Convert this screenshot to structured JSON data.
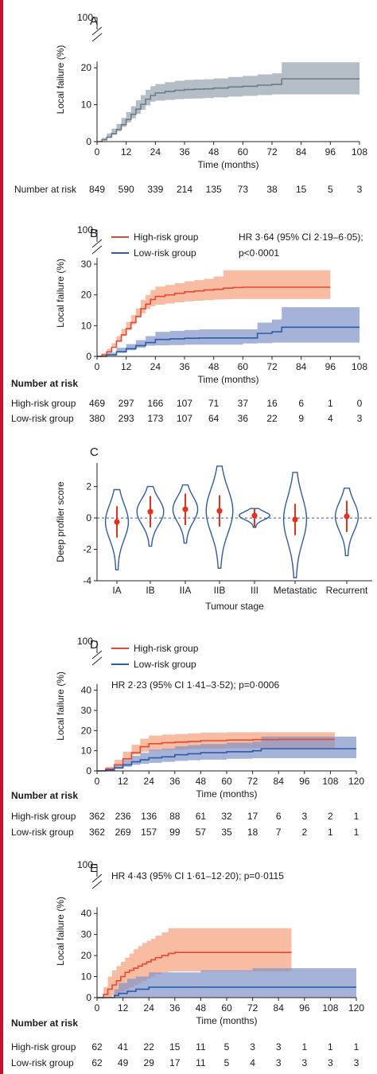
{
  "colors": {
    "gray": "#6e7b85",
    "gray_fill": "#9aa8b3",
    "red": "#e8482c",
    "red_fill": "#f4a07a",
    "blue": "#2f5aa8",
    "blue_fill": "#7f93c8",
    "dot": "#e8301e"
  },
  "chart_data": [
    {
      "panel": "A",
      "type": "line",
      "xlabel": "Time (months)",
      "ylabel": "Local failure (%)",
      "xticks": [
        0,
        12,
        24,
        36,
        48,
        60,
        72,
        84,
        96,
        108
      ],
      "yticks": [
        0,
        10,
        20
      ],
      "y_break_label": "100",
      "xlim": [
        0,
        108
      ],
      "ylim": [
        0,
        25
      ],
      "series": [
        {
          "name": "",
          "color": "gray",
          "x": [
            0,
            2,
            4,
            6,
            8,
            10,
            12,
            14,
            16,
            18,
            20,
            22,
            24,
            28,
            32,
            36,
            40,
            44,
            48,
            54,
            60,
            66,
            72,
            76,
            80,
            90,
            100,
            108
          ],
          "y": [
            0,
            0.5,
            1.2,
            2.2,
            3.3,
            4.6,
            6,
            7.4,
            8.8,
            10.1,
            11.5,
            12.5,
            13.2,
            13.6,
            13.9,
            14.1,
            14.2,
            14.3,
            14.5,
            14.8,
            15,
            15.3,
            15.5,
            17,
            17,
            17,
            17,
            17
          ],
          "lo": [
            0,
            0,
            0.3,
            1,
            1.8,
            2.8,
            4,
            5.2,
            6.3,
            7.5,
            8.6,
            9.8,
            10.8,
            11.1,
            11.3,
            11.5,
            11.6,
            11.7,
            11.8,
            12,
            12.2,
            12.4,
            12.6,
            12.8,
            12.8,
            12.8,
            12.8,
            12.8
          ],
          "hi": [
            0,
            1,
            2.2,
            3.5,
            4.8,
            6.4,
            8,
            9.6,
            11.2,
            12.6,
            14,
            15,
            15.6,
            16.1,
            16.5,
            16.7,
            16.8,
            16.9,
            17.1,
            17.5,
            17.8,
            18.2,
            18.5,
            21.5,
            21.5,
            21.5,
            21.5,
            21.5
          ]
        }
      ],
      "risk_table": {
        "header": "Number at risk",
        "rows": [
          {
            "label": "",
            "values": [
              "849",
              "590",
              "339",
              "214",
              "135",
              "73",
              "38",
              "15",
              "5",
              "3"
            ]
          }
        ]
      }
    },
    {
      "panel": "B",
      "type": "line",
      "xlabel": "Time (months)",
      "ylabel": "Local failure (%)",
      "xticks": [
        0,
        12,
        24,
        36,
        48,
        60,
        72,
        84,
        96,
        108
      ],
      "yticks": [
        0,
        10,
        20,
        30
      ],
      "y_break_label": "100",
      "xlim": [
        0,
        108
      ],
      "ylim": [
        0,
        30
      ],
      "annotation": [
        "HR 3·64 (95% CI 2·19–6·05);",
        "p<0·0001"
      ],
      "series": [
        {
          "name": "High-risk group",
          "color": "red",
          "x": [
            0,
            2,
            4,
            6,
            8,
            10,
            12,
            14,
            16,
            18,
            20,
            22,
            24,
            28,
            32,
            36,
            40,
            44,
            48,
            52,
            56,
            60,
            64,
            70,
            76,
            80,
            90,
            96
          ],
          "y": [
            0,
            0.5,
            1.5,
            3,
            5,
            7,
            9,
            11,
            13,
            15.5,
            17,
            18.5,
            19.5,
            20,
            20.5,
            21,
            21.3,
            21.6,
            21.8,
            22.2,
            22.4,
            22.5,
            22.5,
            22.5,
            22.5,
            22.5,
            22.5,
            22.5
          ],
          "lo": [
            0,
            0,
            0.6,
            1.8,
            3.4,
            5,
            6.8,
            8.6,
            10.4,
            12.6,
            14,
            15.4,
            16.3,
            16.8,
            17.2,
            17.6,
            17.9,
            18.1,
            18.3,
            18.5,
            18.6,
            18.7,
            18.7,
            18.7,
            18.7,
            18.7,
            18.7,
            18.7
          ],
          "hi": [
            0,
            1,
            2.5,
            4.3,
            6.6,
            9,
            11.2,
            13.4,
            15.6,
            18.4,
            20,
            21.6,
            22.7,
            23.2,
            23.8,
            24.4,
            24.8,
            25.2,
            26,
            28,
            28,
            28,
            28,
            28,
            28,
            28,
            28,
            28
          ]
        },
        {
          "name": "Low-risk group",
          "color": "blue",
          "x": [
            0,
            4,
            8,
            12,
            16,
            20,
            24,
            30,
            36,
            42,
            48,
            54,
            60,
            66,
            72,
            76,
            80,
            90,
            100,
            108
          ],
          "y": [
            0,
            0.5,
            1.5,
            2.5,
            3.5,
            4.5,
            5.5,
            5.7,
            5.9,
            6,
            6,
            6,
            6,
            7.5,
            8,
            9.5,
            9.5,
            9.5,
            9.5,
            9.5
          ],
          "lo": [
            0,
            0,
            0.5,
            1.2,
            2,
            2.8,
            3.5,
            3.6,
            3.7,
            3.8,
            3.8,
            3.8,
            3.8,
            4.2,
            4.3,
            4.5,
            4.5,
            4.5,
            4.5,
            4.5
          ],
          "hi": [
            0,
            1.2,
            2.8,
            4,
            5.3,
            6.6,
            8,
            8.3,
            8.6,
            8.8,
            8.8,
            8.8,
            8.8,
            11,
            12,
            16,
            16,
            16,
            16,
            16
          ]
        }
      ],
      "risk_table": {
        "header": "Number at risk",
        "rows": [
          {
            "label": "High-risk group",
            "values": [
              "469",
              "297",
              "166",
              "107",
              "71",
              "37",
              "16",
              "6",
              "1",
              "0"
            ]
          },
          {
            "label": "Low-risk group",
            "values": [
              "380",
              "293",
              "173",
              "107",
              "64",
              "36",
              "22",
              "9",
              "4",
              "3"
            ]
          }
        ]
      }
    },
    {
      "panel": "C",
      "type": "violin",
      "xlabel": "Tumour stage",
      "ylabel": "Deep profiler score",
      "categories": [
        "IA",
        "IB",
        "IIA",
        "IIB",
        "III",
        "Metastatic",
        "Recurrent"
      ],
      "yticks": [
        -4,
        -2,
        0,
        2
      ],
      "ylim": [
        -4,
        3.5
      ],
      "reference_line": 0,
      "medians": [
        -0.25,
        0.4,
        0.55,
        0.45,
        0.15,
        -0.1,
        0.1
      ],
      "ranges": [
        [
          -3.3,
          1.8
        ],
        [
          -1.8,
          2
        ],
        [
          -1.6,
          2.1
        ],
        [
          -3.2,
          3.3
        ],
        [
          -0.6,
          0.6
        ],
        [
          -3.8,
          2.9
        ],
        [
          -2.4,
          1.9
        ]
      ],
      "widths": [
        0.55,
        0.65,
        0.6,
        0.65,
        0.75,
        0.55,
        0.55
      ]
    },
    {
      "panel": "D",
      "type": "line",
      "xlabel": "Time (months)",
      "ylabel": "Local failure (%)",
      "xticks": [
        0,
        12,
        24,
        36,
        48,
        60,
        72,
        84,
        96,
        108,
        120
      ],
      "yticks": [
        0,
        10,
        20,
        30,
        40
      ],
      "y_break_label": "100",
      "xlim": [
        0,
        120
      ],
      "ylim": [
        0,
        45
      ],
      "annotation": [
        "HR 2·23 (95% CI 1·41–3·52); p=0·0006"
      ],
      "series": [
        {
          "name": "High-risk group",
          "color": "red",
          "x": [
            0,
            4,
            8,
            12,
            16,
            20,
            24,
            30,
            36,
            42,
            48,
            60,
            72,
            84,
            96,
            108,
            110
          ],
          "y": [
            0,
            1,
            3,
            6,
            9,
            12,
            13.5,
            14,
            14.3,
            14.6,
            15,
            15.3,
            15.5,
            15.6,
            15.6,
            15.6,
            15.6
          ],
          "lo": [
            0,
            0,
            1,
            3,
            5.5,
            8,
            9.5,
            10,
            10.3,
            10.5,
            10.8,
            11,
            11.2,
            11.3,
            11.3,
            11.3,
            11.3
          ],
          "hi": [
            0,
            2,
            5.5,
            9.5,
            13,
            16,
            17.5,
            18,
            18.3,
            18.6,
            19,
            19.2,
            19.2,
            19.2,
            19.2,
            19.2,
            19.2
          ]
        },
        {
          "name": "Low-risk group",
          "color": "blue",
          "x": [
            0,
            4,
            8,
            12,
            16,
            20,
            24,
            30,
            36,
            42,
            48,
            60,
            72,
            76,
            84,
            96,
            108,
            120
          ],
          "y": [
            0,
            0.5,
            1.5,
            3,
            4.5,
            5.5,
            6.5,
            7,
            8,
            8.5,
            9,
            9.5,
            10,
            11,
            11,
            11,
            11,
            11
          ],
          "lo": [
            0,
            0,
            0.3,
            1,
            2,
            3,
            3.5,
            4,
            4.5,
            5,
            5.3,
            5.6,
            6,
            6.3,
            6.3,
            6.3,
            6.3,
            6.3
          ],
          "hi": [
            0,
            1.2,
            3.2,
            5.5,
            7.5,
            9,
            10.5,
            11,
            12.2,
            12.8,
            13.3,
            14,
            14.5,
            17,
            17,
            17,
            17,
            17
          ]
        }
      ],
      "risk_table": {
        "header": "Number at risk",
        "rows": [
          {
            "label": "High-risk group",
            "values": [
              "362",
              "236",
              "136",
              "88",
              "61",
              "32",
              "17",
              "6",
              "3",
              "2",
              "1"
            ]
          },
          {
            "label": "Low-risk group",
            "values": [
              "362",
              "269",
              "157",
              "99",
              "57",
              "35",
              "18",
              "7",
              "2",
              "1",
              "1"
            ]
          }
        ]
      }
    },
    {
      "panel": "E",
      "type": "line",
      "xlabel": "Time (months)",
      "ylabel": "Local failure (%)",
      "xticks": [
        0,
        12,
        24,
        36,
        48,
        60,
        72,
        84,
        96,
        108,
        120
      ],
      "yticks": [
        0,
        10,
        20,
        30,
        40
      ],
      "y_break_label": "100",
      "xlim": [
        0,
        120
      ],
      "ylim": [
        0,
        45
      ],
      "annotation": [
        "HR 4·43 (95% CI 1·61–12·20); p=0·0115"
      ],
      "series": [
        {
          "name": "High-risk group",
          "color": "red",
          "x": [
            0,
            3,
            5,
            7,
            9,
            11,
            13,
            15,
            17,
            19,
            21,
            23,
            25,
            27,
            30,
            33,
            36,
            48,
            60,
            72,
            84,
            90
          ],
          "y": [
            0,
            1.5,
            4,
            6,
            8,
            10,
            12,
            13,
            14,
            15,
            16,
            17,
            18,
            19,
            20,
            21,
            21.5,
            21.5,
            21.5,
            21.5,
            21.5,
            21.5
          ],
          "lo": [
            0,
            0,
            0,
            0,
            1,
            2,
            3,
            4,
            5,
            6,
            7,
            8,
            9,
            10,
            11,
            12,
            12.5,
            12.5,
            12.5,
            12.5,
            12.5,
            12.5
          ],
          "hi": [
            0,
            5,
            10,
            13,
            15,
            17,
            19,
            21,
            23,
            24.5,
            26,
            27,
            28,
            29.5,
            31,
            33,
            33,
            33,
            33,
            33,
            33,
            33
          ]
        },
        {
          "name": "Low-risk group",
          "color": "blue",
          "x": [
            0,
            6,
            8,
            10,
            14,
            18,
            24,
            48,
            72,
            96,
            120
          ],
          "y": [
            0,
            0,
            1,
            2,
            3,
            4,
            5,
            5,
            5,
            5,
            5
          ],
          "lo": [
            0,
            0,
            0,
            0,
            0,
            0,
            0,
            0,
            0,
            0,
            0
          ],
          "hi": [
            0,
            0,
            4,
            7,
            9,
            10,
            12,
            13,
            14,
            14,
            14
          ]
        }
      ],
      "risk_table": {
        "header": "Number at risk",
        "rows": [
          {
            "label": "High-risk group",
            "values": [
              "62",
              "41",
              "22",
              "15",
              "11",
              "5",
              "3",
              "3",
              "1",
              "1",
              "1"
            ]
          },
          {
            "label": "Low-risk group",
            "values": [
              "62",
              "49",
              "29",
              "17",
              "11",
              "5",
              "4",
              "3",
              "3",
              "3",
              "3"
            ]
          }
        ]
      }
    }
  ]
}
